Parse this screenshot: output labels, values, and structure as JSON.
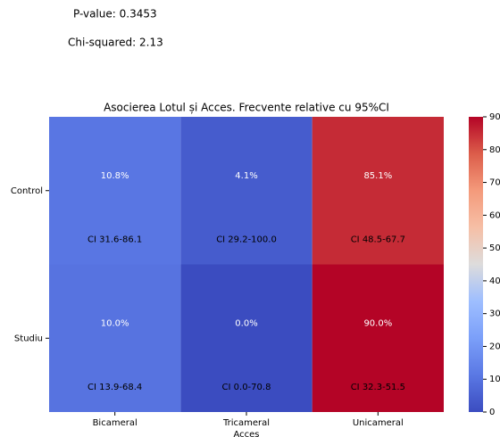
{
  "chart_data": {
    "type": "heatmap",
    "title": "Asocierea Lotul și Acces. Frecvente relative cu 95%CI",
    "annotations": [
      "P-value: 0.3453",
      "Chi-squared: 2.13"
    ],
    "x_label": "Acces",
    "categories": [
      "Bicameral",
      "Tricameral",
      "Unicameral"
    ],
    "rows": [
      "Control",
      "Studiu"
    ],
    "values": [
      [
        10.8,
        4.1,
        85.1
      ],
      [
        10.0,
        0.0,
        90.0
      ]
    ],
    "value_labels": [
      [
        "10.8%",
        "4.1%",
        "85.1%"
      ],
      [
        "10.0%",
        "0.0%",
        "90.0%"
      ]
    ],
    "ci_labels": [
      [
        "CI 31.6-86.1",
        "CI 29.2-100.0",
        "CI 48.5-67.7"
      ],
      [
        "CI 13.9-68.4",
        "CI 0.0-70.8",
        "CI 32.3-51.5"
      ]
    ],
    "colormap": "coolwarm",
    "zlim": [
      0,
      90
    ],
    "zticks": [
      0,
      10,
      20,
      30,
      40,
      50,
      60,
      70,
      80,
      90
    ]
  }
}
